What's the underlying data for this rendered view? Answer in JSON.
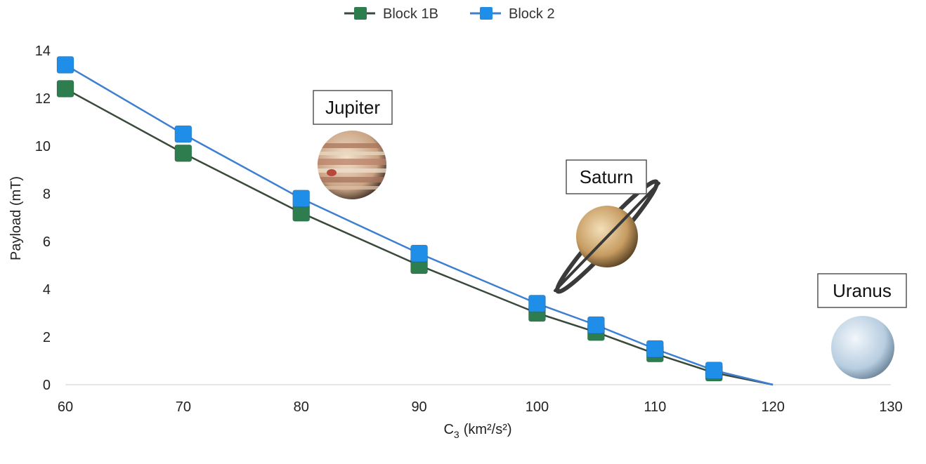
{
  "chart_data": {
    "type": "line",
    "title": "",
    "xlabel": "C",
    "xlabel_sub": "3",
    "xlabel_unit": "(km²/s²)",
    "ylabel": "Payload (mT)",
    "xlim": [
      60,
      130
    ],
    "ylim": [
      0,
      14
    ],
    "xticks": [
      60,
      70,
      80,
      90,
      100,
      110,
      120,
      130
    ],
    "yticks": [
      0,
      2,
      4,
      6,
      8,
      10,
      12,
      14
    ],
    "grid": false,
    "legend_position": "top-center",
    "series": [
      {
        "name": "Block 1B",
        "color": "#2e7d4f",
        "line_color": "#3a4a3a",
        "x": [
          60,
          70,
          80,
          90,
          100,
          105,
          110,
          115,
          120
        ],
        "y": [
          12.4,
          9.7,
          7.2,
          5.0,
          3.0,
          2.2,
          1.3,
          0.5,
          0.0
        ],
        "markers": [
          true,
          true,
          true,
          true,
          true,
          true,
          true,
          true,
          false
        ]
      },
      {
        "name": "Block 2",
        "color": "#1f8ee8",
        "line_color": "#3f7fd0",
        "x": [
          60,
          70,
          80,
          90,
          100,
          105,
          110,
          115,
          120
        ],
        "y": [
          13.4,
          10.5,
          7.8,
          5.5,
          3.4,
          2.5,
          1.5,
          0.6,
          0.0
        ],
        "markers": [
          true,
          true,
          true,
          true,
          true,
          true,
          true,
          true,
          false
        ]
      }
    ],
    "annotations": [
      {
        "text": "Jupiter",
        "icon": "jupiter-icon"
      },
      {
        "text": "Saturn",
        "icon": "saturn-icon"
      },
      {
        "text": "Uranus",
        "icon": "uranus-icon"
      }
    ]
  }
}
